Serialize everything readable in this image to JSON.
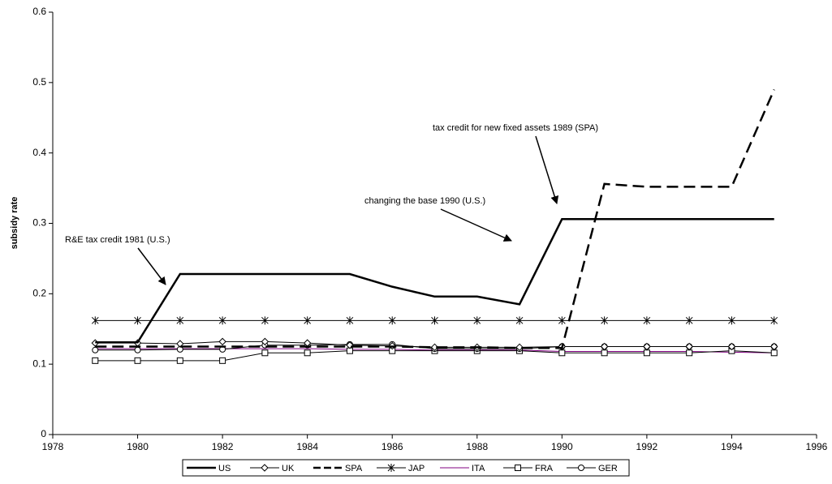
{
  "chart_data": {
    "type": "line",
    "y_label": "subsidy rate",
    "x": [
      1979,
      1980,
      1981,
      1982,
      1983,
      1984,
      1985,
      1986,
      1987,
      1988,
      1989,
      1990,
      1991,
      1992,
      1993,
      1994,
      1995
    ],
    "xlim": [
      1978,
      1996
    ],
    "xticks": [
      1978,
      1980,
      1982,
      1984,
      1986,
      1988,
      1990,
      1992,
      1994,
      1996
    ],
    "ylim": [
      0,
      0.6
    ],
    "yticks": [
      0,
      0.1,
      0.2,
      0.3,
      0.4,
      0.5,
      0.6
    ],
    "grid": false,
    "legend": "bottom",
    "series": [
      {
        "name": "US",
        "color": "#000000",
        "line_width": 2.5,
        "dash": false,
        "marker": "none",
        "values": [
          0.131,
          0.131,
          0.228,
          0.228,
          0.228,
          0.228,
          0.228,
          0.21,
          0.196,
          0.196,
          0.185,
          0.306,
          0.306,
          0.306,
          0.306,
          0.306,
          0.306
        ]
      },
      {
        "name": "UK",
        "color": "#000000",
        "line_width": 1,
        "dash": false,
        "marker": "diamond",
        "values": [
          0.13,
          0.13,
          0.129,
          0.132,
          0.132,
          0.13,
          0.127,
          0.126,
          0.124,
          0.124,
          0.124,
          0.125,
          0.125,
          0.125,
          0.125,
          0.125,
          0.125
        ]
      },
      {
        "name": "SPA",
        "color": "#000000",
        "line_width": 2.5,
        "dash": true,
        "marker": "none",
        "values": [
          0.125,
          0.125,
          0.125,
          0.125,
          0.125,
          0.125,
          0.125,
          0.125,
          0.124,
          0.124,
          0.123,
          0.123,
          0.356,
          0.352,
          0.352,
          0.352,
          0.49
        ]
      },
      {
        "name": "JAP",
        "color": "#000000",
        "line_width": 1,
        "dash": false,
        "marker": "asterisk",
        "values": [
          0.162,
          0.162,
          0.162,
          0.162,
          0.162,
          0.162,
          0.162,
          0.162,
          0.162,
          0.162,
          0.162,
          0.162,
          0.162,
          0.162,
          0.162,
          0.162,
          0.162
        ]
      },
      {
        "name": "ITA",
        "color": "#800080",
        "line_width": 1,
        "dash": false,
        "marker": "none",
        "values": [
          0.122,
          0.122,
          0.122,
          0.122,
          0.122,
          0.122,
          0.121,
          0.121,
          0.12,
          0.12,
          0.12,
          0.118,
          0.118,
          0.118,
          0.118,
          0.117,
          0.116
        ]
      },
      {
        "name": "FRA",
        "color": "#000000",
        "line_width": 1,
        "dash": false,
        "marker": "square",
        "values": [
          0.105,
          0.105,
          0.105,
          0.105,
          0.116,
          0.116,
          0.119,
          0.119,
          0.119,
          0.119,
          0.119,
          0.116,
          0.116,
          0.116,
          0.116,
          0.119,
          0.116
        ]
      },
      {
        "name": "GER",
        "color": "#000000",
        "line_width": 1,
        "dash": false,
        "marker": "circle",
        "values": [
          0.12,
          0.12,
          0.121,
          0.121,
          0.127,
          0.127,
          0.128,
          0.128,
          0.122,
          0.122,
          0.122,
          0.125,
          0.125,
          0.125,
          0.125,
          0.125,
          0.125
        ]
      }
    ],
    "annotations": [
      "R&E tax credit 1981 (U.S.)",
      "changing the base 1990 (U.S.)",
      "tax credit for new fixed assets 1989 (SPA)"
    ]
  }
}
